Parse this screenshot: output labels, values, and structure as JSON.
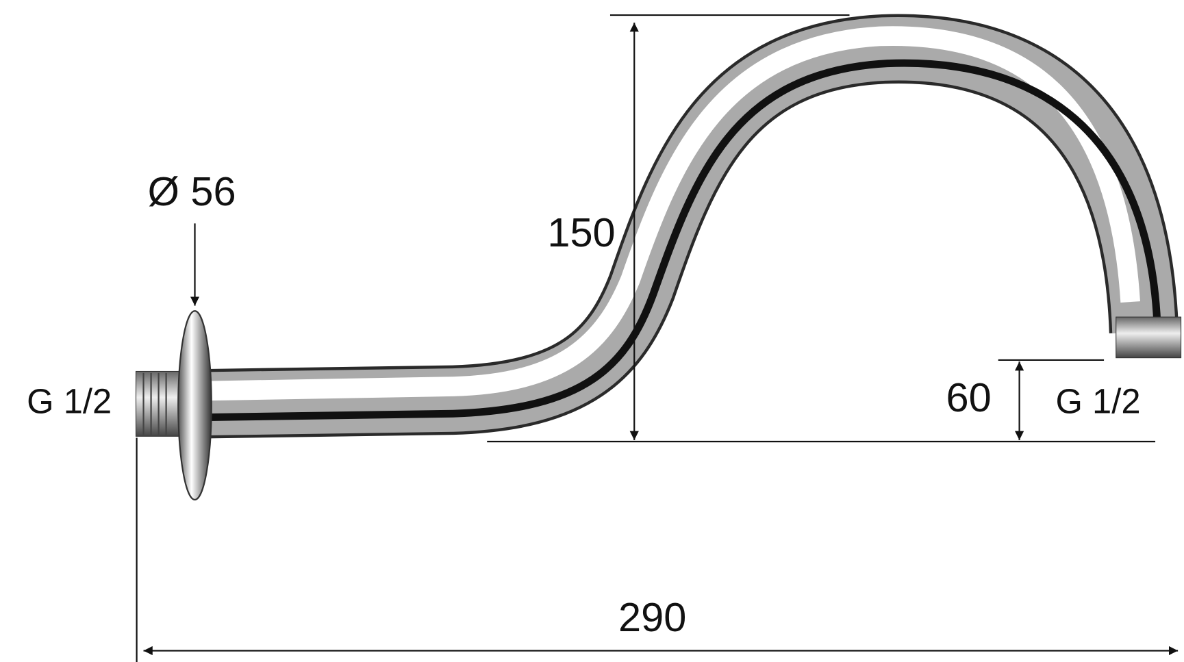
{
  "drawing": {
    "flange_diameter": "Ø 56",
    "height": "150",
    "inlet_thread": "G 1/2",
    "outlet_height": "60",
    "outlet_thread": "G 1/2",
    "length": "290"
  }
}
